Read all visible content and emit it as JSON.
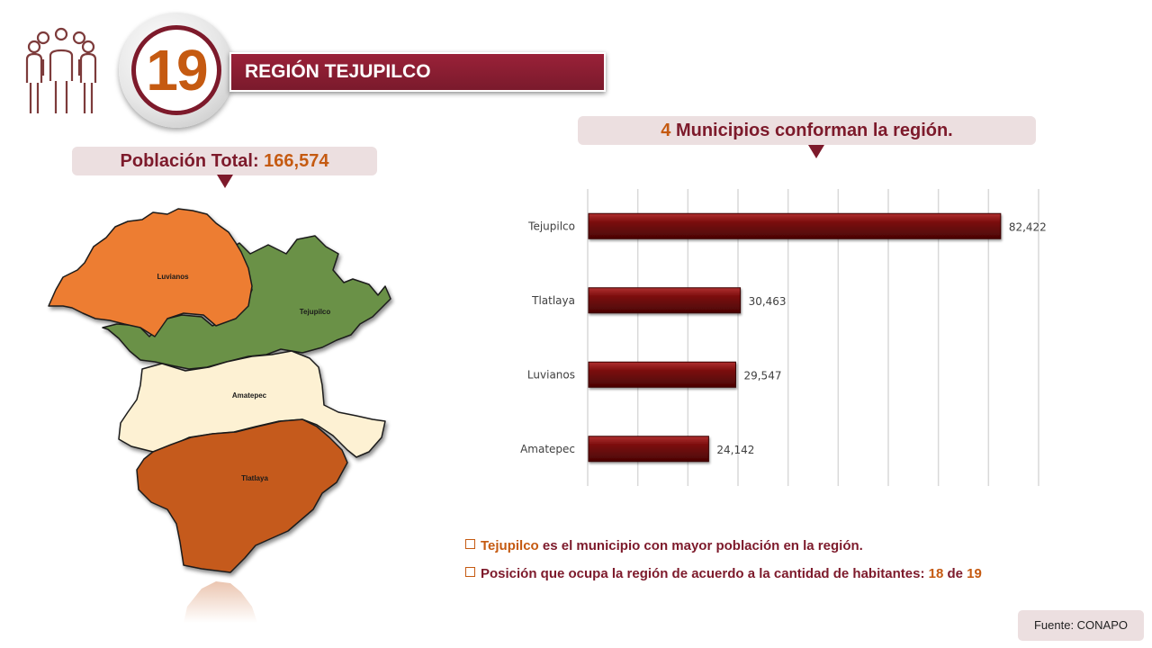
{
  "header": {
    "region_number": "19",
    "region_title": "REGIÓN TEJUPILCO"
  },
  "population": {
    "label": "Población Total:",
    "value": "166,574"
  },
  "municipios": {
    "count": "4",
    "text": "Municipios conforman la región."
  },
  "map": {
    "labels": [
      "Luvianos",
      "Tejupilco",
      "Amatepec",
      "Tlatlaya"
    ],
    "colors": {
      "Luvianos": "#ed7d31",
      "Tejupilco": "#6a9147",
      "Amatepec": "#fdf1d3",
      "Tlatlaya": "#c55a1e"
    }
  },
  "chart_data": {
    "type": "bar",
    "orientation": "horizontal",
    "categories": [
      "Tejupilco",
      "Tlatlaya",
      "Luvianos",
      "Amatepec"
    ],
    "values": [
      82422,
      30463,
      29547,
      24142
    ],
    "value_labels": [
      "82,422",
      "30,463",
      "29,547",
      "24,142"
    ],
    "xlim": [
      0,
      90000
    ],
    "grid": true,
    "bar_color": "#7a0c0c"
  },
  "notes": {
    "line1": {
      "highlight": "Tejupilco",
      "text": "es el municipio con mayor población en la región."
    },
    "line2": {
      "text": "Posición que ocupa la región de acuerdo a la cantidad de habitantes:",
      "position": "18",
      "of": "de",
      "total": "19"
    }
  },
  "source": "Fuente: CONAPO",
  "colors": {
    "accent": "#7d1a2b",
    "highlight": "#c55a11",
    "pill": "#ecdfe0"
  }
}
